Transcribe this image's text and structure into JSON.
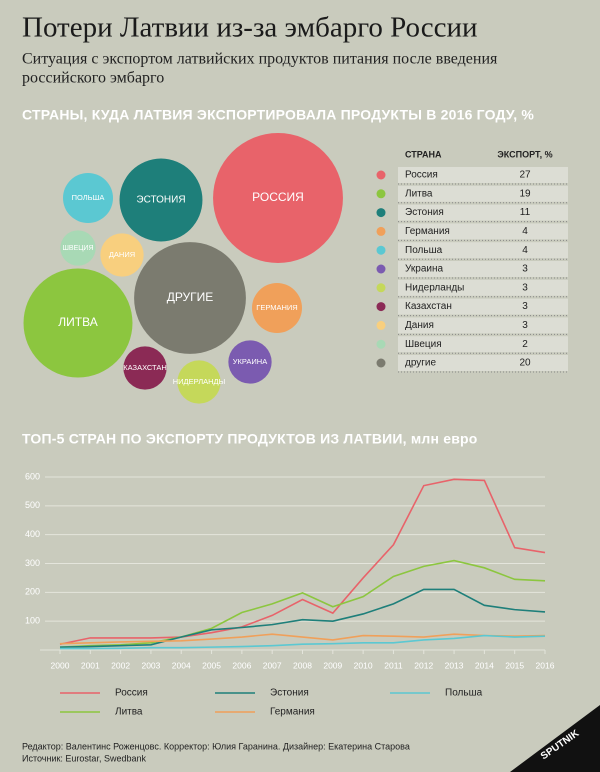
{
  "title": "Потери Латвии из-за эмбарго России",
  "subtitle": [
    "Ситуация с экспортом латвийских продуктов питания после введения",
    "российского эмбарго"
  ],
  "chart_data": [
    {
      "type": "bubble",
      "title": "СТРАНЫ, КУДА ЛАТВИЯ ЭКСПОРТИРОВАЛА ПРОДУКТЫ В 2016 ГОДУ, %",
      "column_headers": [
        "СТРАНА",
        "ЭКСПОРТ, %"
      ],
      "categories": [
        "Россия",
        "Литва",
        "Эстония",
        "Германия",
        "Польша",
        "Украина",
        "Нидерланды",
        "Казахстан",
        "Дания",
        "Швеция",
        "другие"
      ],
      "bubble_labels": [
        "РОССИЯ",
        "ЛИТВА",
        "ЭСТОНИЯ",
        "ГЕРМАНИЯ",
        "ПОЛЬША",
        "УКРАИНА",
        "НИДЕРЛАНДЫ",
        "КАЗАХСТАН",
        "ДАНИЯ",
        "ШВЕЦИЯ",
        "ДРУГИЕ"
      ],
      "values": [
        27,
        19,
        11,
        4,
        4,
        3,
        3,
        3,
        3,
        2,
        20
      ],
      "colors": [
        "#e8636a",
        "#8cc63f",
        "#1e7f7a",
        "#f0a05a",
        "#5bc8d2",
        "#7b5bb0",
        "#c5d85a",
        "#8b2a55",
        "#f8cf7e",
        "#a8d9b5",
        "#7b7b6f"
      ]
    },
    {
      "type": "line",
      "title": "ТОП-5 СТРАН ПО ЭКСПОРТУ ПРОДУКТОВ ИЗ ЛАТВИИ, млн евро",
      "x": [
        2000,
        2001,
        2002,
        2003,
        2004,
        2005,
        2006,
        2007,
        2008,
        2009,
        2010,
        2011,
        2012,
        2013,
        2014,
        2015,
        2016
      ],
      "xlim": [
        2000,
        2016
      ],
      "xticks": [
        2000,
        2001,
        2002,
        2003,
        2004,
        2005,
        2006,
        2007,
        2008,
        2009,
        2010,
        2011,
        2012,
        2013,
        2014,
        2015,
        2016
      ],
      "ylim": [
        0,
        600
      ],
      "yticks": [
        100,
        200,
        300,
        400,
        500,
        600
      ],
      "grid": true,
      "series": [
        {
          "name": "Россия",
          "color": "#e8636a",
          "values": [
            20,
            42,
            42,
            42,
            45,
            60,
            80,
            120,
            175,
            128,
            250,
            365,
            570,
            592,
            588,
            355,
            338
          ]
        },
        {
          "name": "Литва",
          "color": "#8cc63f",
          "values": [
            10,
            15,
            18,
            25,
            45,
            75,
            130,
            160,
            198,
            150,
            185,
            255,
            290,
            310,
            285,
            245,
            240
          ]
        },
        {
          "name": "Эстония",
          "color": "#1e7f7a",
          "values": [
            10,
            12,
            15,
            18,
            45,
            70,
            78,
            88,
            105,
            100,
            125,
            160,
            210,
            210,
            155,
            140,
            132
          ]
        },
        {
          "name": "Германия",
          "color": "#f0a05a",
          "values": [
            22,
            25,
            28,
            30,
            32,
            38,
            45,
            55,
            45,
            35,
            50,
            48,
            45,
            55,
            50,
            48,
            50
          ]
        },
        {
          "name": "Польша",
          "color": "#5bc8d2",
          "values": [
            5,
            5,
            6,
            8,
            8,
            10,
            12,
            15,
            20,
            22,
            25,
            25,
            35,
            40,
            50,
            45,
            48
          ]
        }
      ]
    }
  ],
  "footer": [
    "Редактор: Валентинс Роженцовс. Корректор: Юлия Гаранина. Дизайнер: Екатерина Старова",
    "Источник: Eurostar, Swedbank"
  ],
  "logo": "SPUTNIK"
}
